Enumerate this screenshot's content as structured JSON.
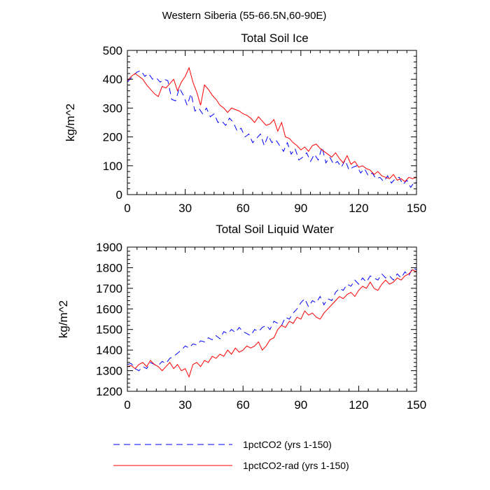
{
  "figure": {
    "suptitle": "Western Siberia (55-66.5N,60-90E)"
  },
  "colors": {
    "series_1": "#0000ff",
    "series_2": "#ff0000",
    "axes": "#000000"
  },
  "legend": {
    "placement": "bottom",
    "entries": [
      {
        "label": "1pctCO2 (yrs 1-150)",
        "color": "#0000ff",
        "style": "dashed"
      },
      {
        "label": "1pctCO2-rad (yrs 1-150)",
        "color": "#ff0000",
        "style": "solid"
      }
    ]
  },
  "chart_data": [
    {
      "type": "line",
      "title": "Total Soil Ice",
      "xlabel": "",
      "ylabel": "kg/m^2",
      "xlim": [
        0,
        150
      ],
      "ylim": [
        0,
        500
      ],
      "xticks": [
        0,
        30,
        60,
        90,
        120,
        150
      ],
      "yticks": [
        0,
        100,
        200,
        300,
        400,
        500
      ],
      "grid": false,
      "series": [
        {
          "name": "1pctCO2 (yrs 1-150)",
          "color": "#0000ff",
          "dash": "dashed",
          "x": [
            0,
            2,
            5,
            7,
            9,
            11,
            13,
            15,
            17,
            19,
            21,
            23,
            25,
            27,
            29,
            31,
            33,
            35,
            37,
            39,
            41,
            43,
            45,
            47,
            49,
            51,
            53,
            55,
            57,
            59,
            61,
            63,
            65,
            67,
            69,
            71,
            73,
            75,
            77,
            79,
            81,
            83,
            85,
            87,
            89,
            91,
            93,
            95,
            97,
            99,
            101,
            103,
            105,
            107,
            109,
            111,
            113,
            115,
            117,
            119,
            121,
            123,
            125,
            127,
            129,
            131,
            133,
            135,
            137,
            139,
            141,
            143,
            145,
            147,
            149,
            150
          ],
          "y": [
            390,
            405,
            425,
            430,
            410,
            420,
            400,
            405,
            390,
            400,
            395,
            330,
            325,
            370,
            345,
            310,
            350,
            290,
            300,
            280,
            300,
            270,
            280,
            250,
            255,
            240,
            265,
            250,
            220,
            230,
            200,
            210,
            180,
            195,
            210,
            170,
            205,
            180,
            190,
            170,
            150,
            180,
            140,
            160,
            120,
            130,
            145,
            115,
            140,
            120,
            165,
            110,
            130,
            105,
            115,
            95,
            120,
            85,
            95,
            100,
            75,
            90,
            65,
            75,
            55,
            60,
            45,
            65,
            40,
            55,
            60,
            35,
            50,
            25,
            45,
            40
          ]
        },
        {
          "name": "1pctCO2-rad (yrs 1-150)",
          "color": "#ff0000",
          "dash": "solid",
          "x": [
            0,
            2,
            4,
            6,
            8,
            10,
            12,
            14,
            16,
            18,
            20,
            22,
            24,
            26,
            28,
            30,
            32,
            34,
            36,
            38,
            40,
            42,
            44,
            46,
            48,
            50,
            52,
            54,
            56,
            58,
            60,
            62,
            64,
            66,
            68,
            70,
            72,
            74,
            76,
            78,
            80,
            82,
            84,
            86,
            88,
            90,
            92,
            94,
            96,
            98,
            100,
            102,
            104,
            106,
            108,
            110,
            112,
            114,
            116,
            118,
            120,
            122,
            124,
            126,
            128,
            130,
            132,
            134,
            136,
            138,
            140,
            142,
            144,
            146,
            148,
            150
          ],
          "y": [
            395,
            410,
            420,
            410,
            400,
            380,
            365,
            350,
            340,
            375,
            370,
            385,
            400,
            360,
            390,
            410,
            440,
            390,
            355,
            310,
            380,
            365,
            345,
            330,
            310,
            300,
            285,
            300,
            295,
            290,
            280,
            275,
            265,
            250,
            270,
            255,
            240,
            245,
            260,
            220,
            250,
            200,
            195,
            180,
            170,
            155,
            165,
            150,
            170,
            175,
            160,
            150,
            140,
            130,
            145,
            125,
            110,
            135,
            105,
            115,
            95,
            100,
            90,
            85,
            70,
            80,
            65,
            60,
            55,
            70,
            50,
            55,
            45,
            60,
            55,
            60
          ]
        }
      ]
    },
    {
      "type": "line",
      "title": "Total Soil Liquid Water",
      "xlabel": "",
      "ylabel": "kg/m^2",
      "xlim": [
        0,
        150
      ],
      "ylim": [
        1200,
        1900
      ],
      "xticks": [
        0,
        30,
        60,
        90,
        120,
        150
      ],
      "yticks": [
        1200,
        1300,
        1400,
        1500,
        1600,
        1700,
        1800,
        1900
      ],
      "grid": false,
      "series": [
        {
          "name": "1pctCO2 (yrs 1-150)",
          "color": "#0000ff",
          "dash": "dashed",
          "x": [
            0,
            2,
            4,
            6,
            8,
            10,
            12,
            14,
            16,
            18,
            20,
            22,
            24,
            26,
            28,
            30,
            32,
            34,
            36,
            38,
            40,
            42,
            44,
            46,
            48,
            50,
            52,
            54,
            56,
            58,
            60,
            62,
            64,
            66,
            68,
            70,
            72,
            74,
            76,
            78,
            80,
            82,
            84,
            86,
            88,
            90,
            92,
            94,
            96,
            98,
            100,
            102,
            104,
            106,
            108,
            110,
            112,
            114,
            116,
            118,
            120,
            122,
            124,
            126,
            128,
            130,
            132,
            134,
            136,
            138,
            140,
            142,
            144,
            146,
            148,
            150
          ],
          "y": [
            1330,
            1335,
            1310,
            1300,
            1320,
            1310,
            1340,
            1330,
            1325,
            1345,
            1335,
            1360,
            1370,
            1385,
            1400,
            1420,
            1410,
            1430,
            1425,
            1445,
            1440,
            1460,
            1450,
            1470,
            1455,
            1490,
            1480,
            1500,
            1485,
            1510,
            1490,
            1480,
            1470,
            1500,
            1490,
            1510,
            1520,
            1500,
            1540,
            1530,
            1520,
            1560,
            1550,
            1580,
            1600,
            1630,
            1650,
            1610,
            1640,
            1630,
            1660,
            1620,
            1650,
            1640,
            1680,
            1700,
            1690,
            1720,
            1710,
            1740,
            1720,
            1750,
            1730,
            1760,
            1750,
            1740,
            1770,
            1750,
            1760,
            1740,
            1770,
            1750,
            1780,
            1760,
            1800,
            1790
          ]
        },
        {
          "name": "1pctCO2-rad (yrs 1-150)",
          "color": "#ff0000",
          "dash": "solid",
          "x": [
            0,
            2,
            4,
            6,
            8,
            10,
            12,
            14,
            16,
            18,
            20,
            22,
            24,
            26,
            28,
            30,
            32,
            34,
            36,
            38,
            40,
            42,
            44,
            46,
            48,
            50,
            52,
            54,
            56,
            58,
            60,
            62,
            64,
            66,
            68,
            70,
            72,
            74,
            76,
            78,
            80,
            82,
            84,
            86,
            88,
            90,
            92,
            94,
            96,
            98,
            100,
            102,
            104,
            106,
            108,
            110,
            112,
            114,
            116,
            118,
            120,
            122,
            124,
            126,
            128,
            130,
            132,
            134,
            136,
            138,
            140,
            142,
            144,
            146,
            148,
            150
          ],
          "y": [
            1320,
            1325,
            1310,
            1330,
            1340,
            1320,
            1350,
            1330,
            1320,
            1300,
            1320,
            1340,
            1310,
            1330,
            1300,
            1310,
            1270,
            1330,
            1340,
            1320,
            1350,
            1340,
            1370,
            1360,
            1380,
            1370,
            1400,
            1380,
            1410,
            1390,
            1400,
            1420,
            1410,
            1420,
            1440,
            1400,
            1420,
            1450,
            1460,
            1500,
            1520,
            1510,
            1540,
            1530,
            1560,
            1550,
            1590,
            1570,
            1580,
            1560,
            1550,
            1580,
            1600,
            1620,
            1640,
            1660,
            1650,
            1670,
            1680,
            1660,
            1690,
            1710,
            1700,
            1730,
            1700,
            1690,
            1720,
            1740,
            1720,
            1730,
            1750,
            1740,
            1760,
            1770,
            1790,
            1780
          ]
        }
      ]
    }
  ]
}
